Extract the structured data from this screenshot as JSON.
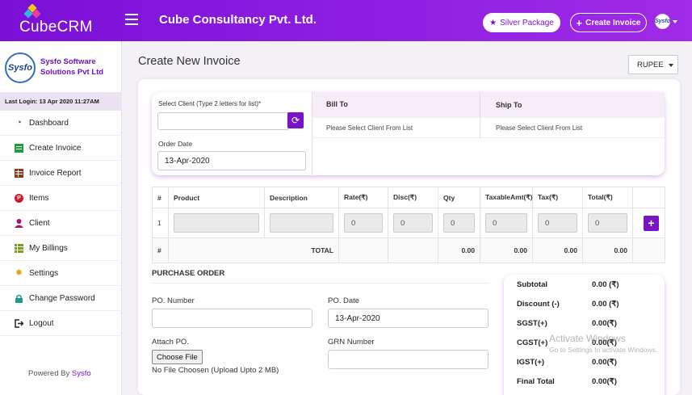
{
  "app": {
    "name": "CubeCRM",
    "company": "Cube Consultancy Pvt. Ltd."
  },
  "header": {
    "package_label": "Silver Package",
    "create_invoice_label": "Create Invoice",
    "avatar_text": "Sysfo"
  },
  "sidebar": {
    "org_logo_text": "Sysfo",
    "org_name": "Sysfo Software Solutions Pvt Ltd",
    "last_login": "Last Login: 13 Apr 2020 11:27AM",
    "items": [
      {
        "label": "Dashboard",
        "icon": "dashboard-icon",
        "color": "#1a4fa0"
      },
      {
        "label": "Create Invoice",
        "icon": "spreadsheet-icon",
        "color": "#1e9e3e"
      },
      {
        "label": "Invoice Report",
        "icon": "table-icon",
        "color": "#8b3a1a"
      },
      {
        "label": "Items",
        "icon": "p-badge-icon",
        "color": "#d01c2a"
      },
      {
        "label": "Client",
        "icon": "user-icon",
        "color": "#a0186a"
      },
      {
        "label": "My Billings",
        "icon": "list-icon",
        "color": "#7a9e1a"
      },
      {
        "label": "Settings",
        "icon": "gear-icon",
        "color": "#e8a11a"
      },
      {
        "label": "Change Password",
        "icon": "lock-icon",
        "color": "#1a9e8a"
      },
      {
        "label": "Logout",
        "icon": "logout-icon",
        "color": "#222222"
      }
    ],
    "powered_prefix": "Powered By",
    "powered_brand": "Sysfo"
  },
  "main": {
    "title": "Create New Invoice",
    "currency": "RUPEE",
    "client": {
      "select_label": "Select Client (Type 2 letters for list)*",
      "select_value": "",
      "order_date_label": "Order Date",
      "order_date_value": "13-Apr-2020",
      "bill_to_label": "Bill To",
      "bill_to_value": "Please Select Client From List",
      "ship_to_label": "Ship To",
      "ship_to_value": "Please Select Client From List"
    },
    "items_table": {
      "headers": [
        "#",
        "Product",
        "Description",
        "Rate(₹)",
        "Disc(₹)",
        "Qty",
        "TaxableAmt(₹)",
        "Tax(₹)",
        "Total(₹)"
      ],
      "row": {
        "index": "1",
        "rate": "0",
        "disc": "0",
        "qty": "0",
        "taxable": "0",
        "tax": "0",
        "total": "0"
      },
      "footer": {
        "hash": "#",
        "total_label": "TOTAL",
        "qty": "0.00",
        "taxable": "0.00",
        "tax": "0.00",
        "total": "0.00"
      }
    },
    "purchase_order": {
      "title": "PURCHASE ORDER",
      "po_number_label": "PO. Number",
      "po_number_value": "",
      "po_date_label": "PO. Date",
      "po_date_value": "13-Apr-2020",
      "attach_label": "Attach PO.",
      "choose_file_label": "Choose File",
      "file_note": "No File Choosen (Upload Upto 2 MB)",
      "grn_label": "GRN Number",
      "grn_value": ""
    },
    "summary": {
      "rows": [
        {
          "label": "Subtotal",
          "value": "0.00 (₹)"
        },
        {
          "label": "Discount (-)",
          "value": "0.00 (₹)"
        },
        {
          "label": "SGST(+)",
          "value": "0.00(₹)"
        },
        {
          "label": "CGST(+)",
          "value": "0.00(₹)"
        },
        {
          "label": "IGST(+)",
          "value": "0.00(₹)"
        },
        {
          "label": "Final Total",
          "value": "0.00(₹)"
        }
      ]
    }
  },
  "overlay": {
    "watermark_title": "Activate Windows",
    "watermark_sub": "Go to Settings to activate Windows."
  }
}
